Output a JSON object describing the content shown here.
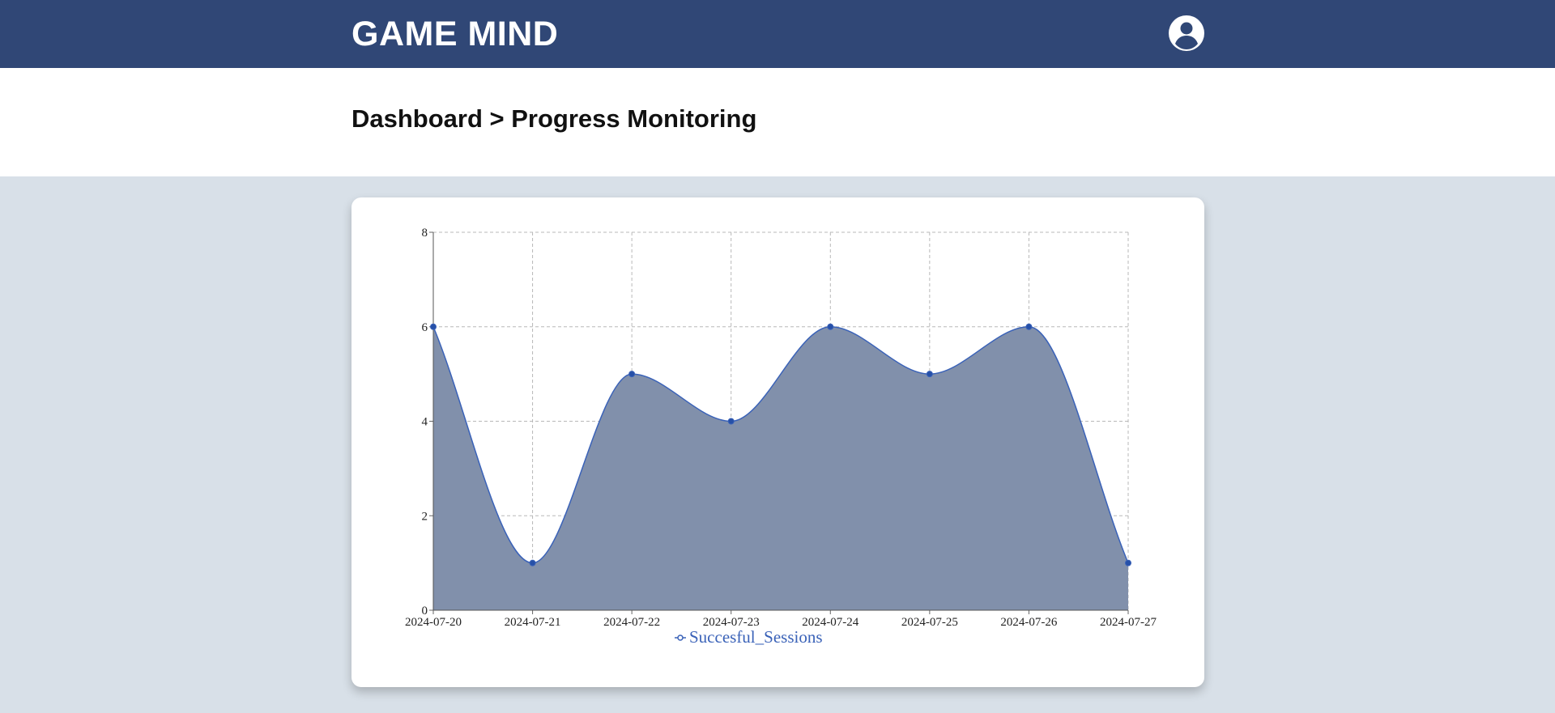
{
  "header": {
    "brand": "GAME MIND",
    "avatar_icon": "user-circle-icon",
    "background_color": "#304776"
  },
  "page": {
    "breadcrumb": "Dashboard > Progress Monitoring"
  },
  "chart_data": {
    "type": "area",
    "x": [
      "2024-07-20",
      "2024-07-21",
      "2024-07-22",
      "2024-07-23",
      "2024-07-24",
      "2024-07-25",
      "2024-07-26",
      "2024-07-27"
    ],
    "series": [
      {
        "name": "Succesful_Sessions",
        "values": [
          6,
          1,
          5,
          4,
          6,
          5,
          6,
          1
        ],
        "color": "#3a62b8",
        "fill_color": "#8190ab"
      }
    ],
    "y_ticks": [
      "0",
      "2",
      "4",
      "6",
      "8"
    ],
    "ylim": [
      0,
      8
    ],
    "grid": true,
    "grid_style": "dashed",
    "legend": "bottom-center",
    "curve": "smooth"
  }
}
